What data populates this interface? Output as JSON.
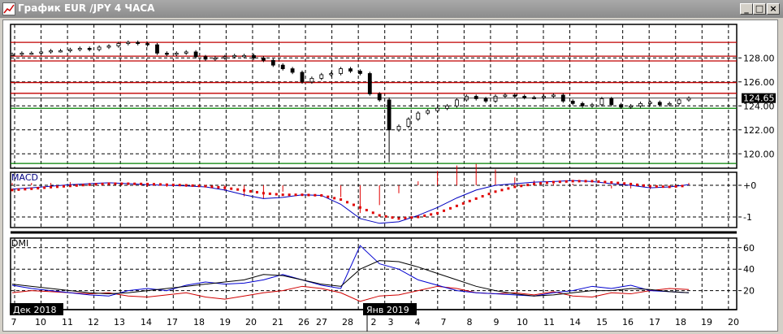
{
  "window": {
    "title": "График EUR /JPY  4 ЧАСА",
    "buttons": {
      "minimize": "_",
      "maximize": "□",
      "close": "×"
    }
  },
  "colors": {
    "resistance": "#c00000",
    "support": "#008000",
    "macd": "#0000c0",
    "signal": "#e00000",
    "plus_di": "#0000d0",
    "minus_di": "#d00000",
    "adx": "#000000"
  },
  "chart_data": [
    {
      "type": "candlestick",
      "panel": "price",
      "y_ticks": [
        "128.00",
        "126.00",
        "124.00",
        "122.00",
        "120.00"
      ],
      "ylim": [
        118.8,
        130.8
      ],
      "current_price": "124.65",
      "resistance_levels": [
        129.3,
        128.15,
        127.75,
        125.95,
        125.05
      ],
      "support_levels": [
        123.8,
        119.2
      ],
      "closes": [
        128.3,
        128.4,
        128.4,
        128.5,
        128.6,
        128.6,
        128.7,
        128.8,
        128.7,
        128.9,
        129.0,
        129.2,
        129.3,
        129.2,
        129.1,
        128.4,
        128.3,
        128.4,
        128.5,
        128.1,
        127.9,
        128.0,
        128.1,
        128.2,
        128.2,
        128.0,
        127.8,
        127.4,
        127.1,
        126.8,
        126.0,
        126.3,
        126.6,
        126.7,
        127.1,
        126.9,
        126.7,
        125.0,
        124.5,
        122.0,
        122.3,
        122.9,
        123.4,
        123.6,
        123.8,
        124.0,
        124.5,
        124.8,
        124.6,
        124.4,
        124.8,
        124.9,
        124.8,
        124.7,
        124.7,
        124.8,
        124.9,
        124.4,
        124.2,
        124.0,
        124.1,
        124.6,
        124.1,
        123.9,
        124.0,
        124.2,
        124.3,
        124.1,
        124.2,
        124.5,
        124.65
      ],
      "low_spike": 119.3
    },
    {
      "type": "line",
      "panel": "macd",
      "label": "MACD",
      "y_ticks": [
        "+0",
        "-1"
      ],
      "ylim": [
        -1.3,
        0.4
      ],
      "macd": [
        -0.12,
        -0.08,
        -0.03,
        0.02,
        0.05,
        0.08,
        0.05,
        0.02,
        0.0,
        -0.02,
        -0.05,
        -0.15,
        -0.3,
        -0.42,
        -0.38,
        -0.3,
        -0.32,
        -0.6,
        -1.05,
        -1.2,
        -1.15,
        -0.95,
        -0.7,
        -0.4,
        -0.15,
        0.0,
        0.05,
        0.1,
        0.12,
        0.15,
        0.12,
        0.05,
        0.0,
        -0.08,
        -0.05,
        0.02
      ],
      "signal": [
        -0.15,
        -0.11,
        -0.06,
        -0.02,
        0.02,
        0.05,
        0.05,
        0.04,
        0.02,
        0.0,
        -0.03,
        -0.08,
        -0.16,
        -0.25,
        -0.3,
        -0.3,
        -0.32,
        -0.45,
        -0.7,
        -0.95,
        -1.05,
        -1.0,
        -0.88,
        -0.65,
        -0.42,
        -0.2,
        -0.05,
        0.04,
        0.1,
        0.13,
        0.13,
        0.09,
        0.04,
        -0.03,
        -0.05,
        -0.01
      ]
    },
    {
      "type": "line",
      "panel": "dmi",
      "label": "DMI",
      "y_ticks": [
        "60",
        "40",
        "20"
      ],
      "ylim": [
        0,
        70
      ],
      "plus_di": [
        25,
        22,
        20,
        18,
        16,
        15,
        20,
        22,
        20,
        25,
        28,
        26,
        27,
        30,
        35,
        30,
        25,
        22,
        62,
        45,
        40,
        30,
        25,
        20,
        18,
        17,
        16,
        15,
        18,
        20,
        24,
        22,
        25,
        20,
        19,
        18
      ],
      "minus_di": [
        18,
        20,
        19,
        18,
        17,
        18,
        15,
        14,
        16,
        18,
        14,
        12,
        15,
        18,
        20,
        24,
        22,
        18,
        10,
        15,
        16,
        20,
        24,
        22,
        18,
        17,
        18,
        16,
        19,
        15,
        14,
        18,
        17,
        20,
        22,
        21
      ],
      "adx": [
        26,
        24,
        22,
        20,
        18,
        17,
        18,
        20,
        22,
        24,
        26,
        28,
        30,
        35,
        34,
        30,
        26,
        24,
        40,
        48,
        47,
        42,
        36,
        30,
        24,
        20,
        17,
        15,
        16,
        18,
        20,
        20,
        22,
        21,
        19,
        18
      ]
    }
  ],
  "x_axis": {
    "month_labels": [
      "Дек 2018",
      "Янв 2019"
    ],
    "tick_labels": [
      "7",
      "10",
      "11",
      "12",
      "13",
      "14",
      "17",
      "18",
      "19",
      "20",
      "21",
      "26",
      "27",
      "28",
      "2",
      "3",
      "4",
      "7",
      "8",
      "9",
      "10",
      "11",
      "14",
      "15",
      "16",
      "17",
      "18",
      "19",
      "20"
    ]
  }
}
